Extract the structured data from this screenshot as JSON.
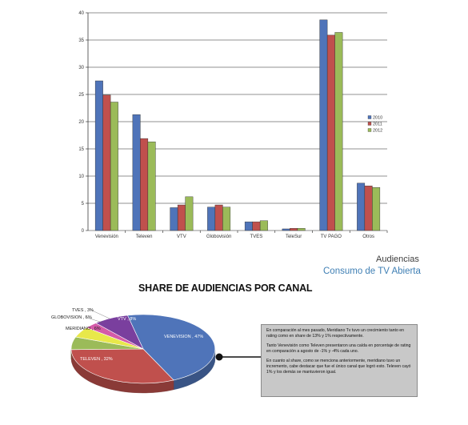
{
  "chart_data": [
    {
      "type": "bar",
      "categories": [
        "Venevisión",
        "Televen",
        "VTV",
        "Globovisión",
        "TVES",
        "TeleSur",
        "TV PAGO",
        "Otros"
      ],
      "series": [
        {
          "name": "2010",
          "color": "#4f74b9",
          "values": [
            27.5,
            21.3,
            4.2,
            4.3,
            1.6,
            0.3,
            38.7,
            8.7
          ]
        },
        {
          "name": "2011",
          "color": "#c0504d",
          "values": [
            24.9,
            16.9,
            4.7,
            4.7,
            1.6,
            0.4,
            35.9,
            8.2
          ]
        },
        {
          "name": "2012",
          "color": "#9bbb59",
          "values": [
            23.6,
            16.3,
            6.2,
            4.3,
            1.8,
            0.4,
            36.4,
            7.9
          ]
        }
      ],
      "ylim": [
        0,
        40
      ],
      "yticks": [
        "0",
        "5",
        "10",
        "15",
        "20",
        "25",
        "30",
        "35",
        "40"
      ],
      "grid": true,
      "legend": "right"
    },
    {
      "type": "pie",
      "title": "SHARE DE AUDIENCIAS POR CANAL",
      "slices": [
        {
          "label": "VENEVISION , 47%",
          "value": 47,
          "color": "#4f74b9"
        },
        {
          "label": "TELEVEN , 32%",
          "value": 32,
          "color": "#c0504d"
        },
        {
          "label": "MERIDIANO , 6%",
          "value": 6,
          "color": "#9bbb59"
        },
        {
          "label": "GLOBOVISION , 5%",
          "value": 5,
          "color": "#e8e84a"
        },
        {
          "label": "TVES , 3%",
          "value": 3,
          "color": "#d45aa8"
        },
        {
          "label": "VTV , 8%",
          "value": 8,
          "color": "#7a3f9e"
        }
      ]
    }
  ],
  "header": {
    "title": "Audiencias",
    "subtitle": "Consumo de TV Abierta"
  },
  "note": {
    "paragraphs": [
      "En comparación al mes pasado, Meridiano Tv tuvo un crecimiento tanto en rating como en share de 13% y 1% respectivamente.",
      "Tanto Venevisión como Televen presentaron una caída en porcentaje de rating en comparación a agosto de -1% y -4% cada uno.",
      "En cuanto al share, como se menciona anteriormente, meridiano tuvo un incremento, cabe destacar que fue el único canal que logró esto. Televen cayó 1% y los demás se mantuvieron igual."
    ]
  }
}
